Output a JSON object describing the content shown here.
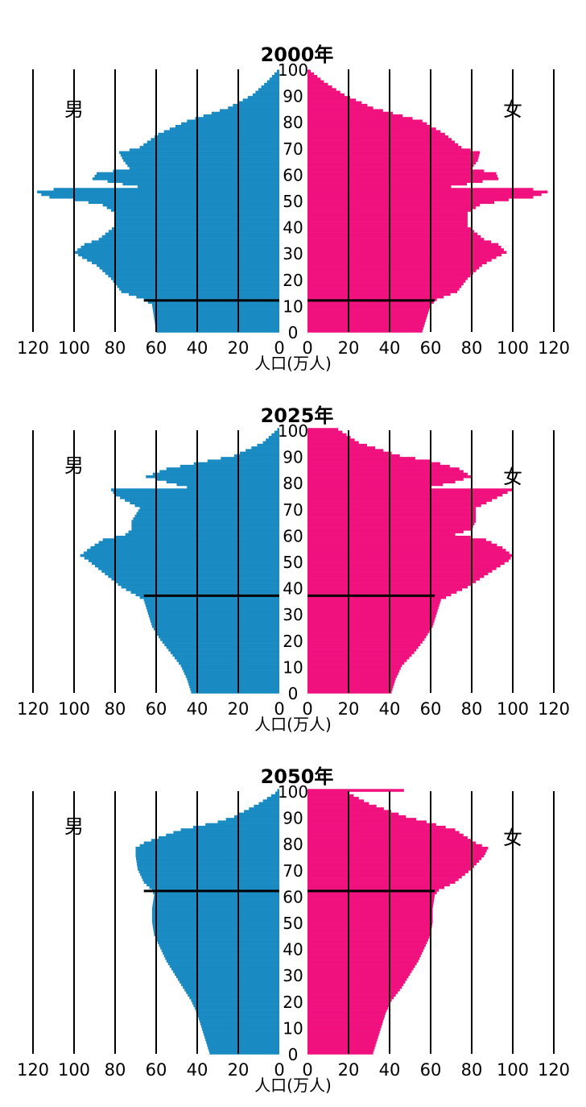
{
  "colors": {
    "male": "#1a8bc2",
    "female": "#f0117f",
    "text": "#000000",
    "grid": "#000000"
  },
  "axis_ticks": {
    "population": [
      "0",
      "20",
      "40",
      "60",
      "80",
      "100",
      "120"
    ],
    "age": [
      "0",
      "10",
      "20",
      "30",
      "40",
      "50",
      "60",
      "70",
      "80",
      "90",
      "100"
    ]
  },
  "chart_data": [
    {
      "type": "bar",
      "title": "2000年",
      "xlabel": "人口(万人)",
      "male_label": "男",
      "female_label": "女",
      "xlim": [
        0,
        120
      ],
      "ylim": [
        0,
        100
      ],
      "median_age": 12,
      "age_points": [
        0,
        5,
        10,
        12,
        15,
        20,
        25,
        28,
        30,
        33,
        35,
        40,
        45,
        48,
        50,
        51,
        52,
        53,
        54,
        55,
        58,
        60,
        62,
        65,
        68,
        70,
        75,
        80,
        85,
        90,
        95,
        100
      ],
      "male": [
        60,
        61,
        62,
        66,
        77,
        82,
        89,
        96,
        100,
        95,
        88,
        80,
        80,
        86,
        100,
        112,
        116,
        118,
        110,
        69,
        91,
        89,
        73,
        76,
        78,
        68,
        59,
        45,
        25,
        13,
        6,
        0
      ],
      "female": [
        56,
        58,
        60,
        63,
        73,
        78,
        85,
        92,
        97,
        93,
        86,
        78,
        78,
        84,
        98,
        110,
        114,
        117,
        110,
        70,
        93,
        92,
        80,
        83,
        84,
        75,
        67,
        56,
        32,
        18,
        8,
        0
      ]
    },
    {
      "type": "bar",
      "title": "2025年",
      "xlabel": "人口(万人)",
      "male_label": "男",
      "female_label": "女",
      "xlim": [
        0,
        120
      ],
      "ylim": [
        0,
        100
      ],
      "median_age": 37,
      "age_points": [
        0,
        5,
        10,
        15,
        20,
        25,
        30,
        35,
        37,
        40,
        45,
        50,
        52,
        55,
        58,
        60,
        62,
        65,
        70,
        75,
        77,
        78,
        80,
        82,
        85,
        88,
        90,
        95,
        100
      ],
      "male": [
        43,
        45,
        48,
        53,
        58,
        62,
        64,
        66,
        70,
        77,
        85,
        93,
        97,
        92,
        86,
        75,
        72,
        72,
        68,
        80,
        82,
        45,
        55,
        65,
        55,
        35,
        22,
        8,
        1
      ],
      "female": [
        41,
        43,
        46,
        52,
        57,
        61,
        63,
        65,
        70,
        78,
        88,
        98,
        100,
        95,
        87,
        72,
        80,
        82,
        82,
        95,
        100,
        60,
        72,
        80,
        74,
        60,
        45,
        25,
        15
      ]
    },
    {
      "type": "bar",
      "title": "2050年",
      "xlabel": "人口(万人)",
      "male_label": "男",
      "female_label": "女",
      "xlim": [
        0,
        120
      ],
      "ylim": [
        0,
        100
      ],
      "median_age": 62,
      "age_points": [
        0,
        5,
        10,
        15,
        20,
        25,
        30,
        35,
        40,
        45,
        50,
        55,
        60,
        62,
        65,
        70,
        75,
        78,
        80,
        85,
        88,
        90,
        95,
        99,
        100
      ],
      "male": [
        34,
        36,
        38,
        40,
        43,
        47,
        51,
        55,
        58,
        61,
        62,
        62,
        61,
        62,
        66,
        69,
        70,
        70,
        66,
        48,
        30,
        22,
        10,
        2,
        1
      ],
      "female": [
        32,
        34,
        36,
        38,
        41,
        46,
        50,
        54,
        57,
        60,
        61,
        61,
        62,
        64,
        72,
        80,
        86,
        88,
        82,
        72,
        58,
        48,
        30,
        20,
        47
      ]
    }
  ]
}
